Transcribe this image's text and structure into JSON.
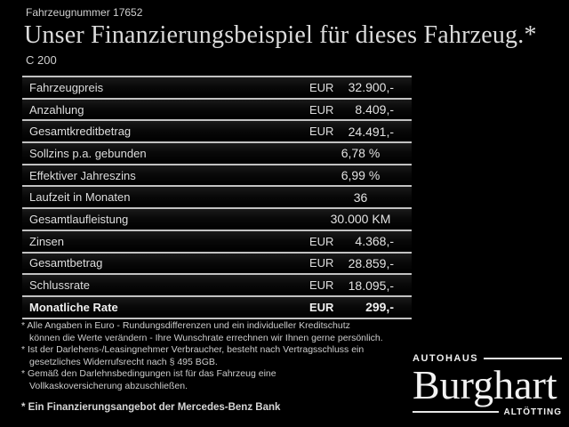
{
  "header": {
    "vehicle_number": "Fahrzeugnummer 17652",
    "title": "Unser Finanzierungsbeispiel für dieses Fahrzeug.*",
    "model": "C 200"
  },
  "table": {
    "rows": [
      {
        "label": "Fahrzeugpreis",
        "currency": "EUR",
        "value": "32.900,-"
      },
      {
        "label": "Anzahlung",
        "currency": "EUR",
        "value": "8.409,-"
      },
      {
        "label": "Gesamtkreditbetrag",
        "currency": "EUR",
        "value": "24.491,-"
      },
      {
        "label": "Sollzins p.a. gebunden",
        "value": "6,78 %"
      },
      {
        "label": "Effektiver Jahreszins",
        "value": "6,99 %"
      },
      {
        "label": "Laufzeit in Monaten",
        "value": "36"
      },
      {
        "label": "Gesamtlaufleistung",
        "value": "30.000 KM"
      },
      {
        "label": "Zinsen",
        "currency": "EUR",
        "value": "4.368,-"
      },
      {
        "label": "Gesamtbetrag",
        "currency": "EUR",
        "value": "28.859,-"
      },
      {
        "label": "Schlussrate",
        "currency": "EUR",
        "value": "18.095,-"
      },
      {
        "label": "Monatliche Rate",
        "currency": "EUR",
        "value": "299,-"
      }
    ]
  },
  "footnotes": {
    "items": [
      {
        "line1": "* Alle Angaben in Euro - Rundungsdifferenzen und ein individueller Kreditschutz",
        "line2": "können die Werte verändern - Ihre Wunschrate errechnen wir Ihnen gerne persönlich."
      },
      {
        "line1": "* Ist der Darlehens-/Leasingnehmer Verbraucher, besteht nach Vertragsschluss ein",
        "line2": "gesetzliches Widerrufsrecht nach § 495 BGB."
      },
      {
        "line1": "* Gemäß den Darlehnsbedingungen ist für das Fahrzeug eine",
        "line2": "Vollkaskoversicherung abzuschließen."
      }
    ],
    "offer_note": "* Ein Finanzierungsangebot der Mercedes-Benz Bank"
  },
  "logo": {
    "top": "AUTOHAUS",
    "name": "Burghart",
    "bottom": "ALTÖTTING"
  },
  "colors": {
    "background": "#000000",
    "text": "#d9d9d9",
    "line": "#c2c2c2",
    "logo_text": "#f0f0f0"
  }
}
